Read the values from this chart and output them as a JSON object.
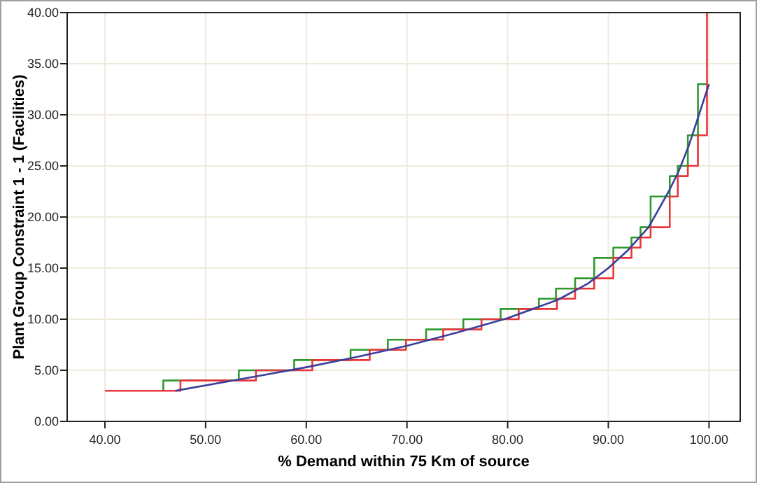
{
  "chart_data": {
    "type": "step",
    "xlabel": "% Demand within 75 Km of source",
    "ylabel": "Plant Group Constraint 1 - 1 (Facilities)",
    "xlim": [
      36.25,
      103.1
    ],
    "ylim": [
      0,
      40
    ],
    "xticks": [
      {
        "value": 40,
        "label": "40.00"
      },
      {
        "value": 50,
        "label": "50.00"
      },
      {
        "value": 60,
        "label": "60.00"
      },
      {
        "value": 70,
        "label": "70.00"
      },
      {
        "value": 80,
        "label": "80.00"
      },
      {
        "value": 90,
        "label": "90.00"
      },
      {
        "value": 100,
        "label": "100.00"
      }
    ],
    "yticks": [
      {
        "value": 0,
        "label": "0.00"
      },
      {
        "value": 5,
        "label": "5.00"
      },
      {
        "value": 10,
        "label": "10.00"
      },
      {
        "value": 15,
        "label": "15.00"
      },
      {
        "value": 20,
        "label": "20.00"
      },
      {
        "value": 25,
        "label": "25.00"
      },
      {
        "value": 30,
        "label": "30.00"
      },
      {
        "value": 35,
        "label": "35.00"
      },
      {
        "value": 40,
        "label": "40.00"
      }
    ],
    "grid": true,
    "series": [
      {
        "color": "#2e9a2e",
        "x": [
          45.8,
          45.8,
          53.3,
          58.8,
          64.4,
          68.1,
          71.9,
          75.6,
          79.3,
          83.1,
          84.8,
          86.7,
          88.6,
          90.5,
          92.3,
          93.2,
          94.2,
          96.1,
          96.9,
          97.9,
          98.9,
          99.8
        ],
        "values": [
          3,
          4,
          5,
          6,
          7,
          8,
          9,
          10,
          11,
          12,
          13,
          14,
          16,
          17,
          18,
          19,
          22,
          24,
          25,
          28,
          33,
          33
        ]
      },
      {
        "color": "#e8363a",
        "x": [
          40,
          47.5,
          55.0,
          60.6,
          66.3,
          69.9,
          73.6,
          77.4,
          81.1,
          84.9,
          86.7,
          88.6,
          90.5,
          92.3,
          93.2,
          94.2,
          96.1,
          96.9,
          97.9,
          98.9,
          99.8
        ],
        "values": [
          3,
          4,
          5,
          6,
          7,
          8,
          9,
          10,
          11,
          12,
          13,
          14,
          16,
          17,
          18,
          19,
          22,
          24,
          25,
          28,
          40
        ]
      },
      {
        "type": "line",
        "color": "#3a3f9c",
        "x": [
          47,
          55,
          60,
          65,
          70,
          75,
          80,
          85,
          88,
          90,
          92,
          94,
          96,
          97,
          98,
          99,
          100
        ],
        "values": [
          3,
          4.4,
          5.3,
          6.3,
          7.4,
          8.7,
          10.1,
          11.9,
          13.5,
          15,
          16.8,
          19,
          22.5,
          24.5,
          27,
          30,
          33
        ]
      }
    ]
  }
}
